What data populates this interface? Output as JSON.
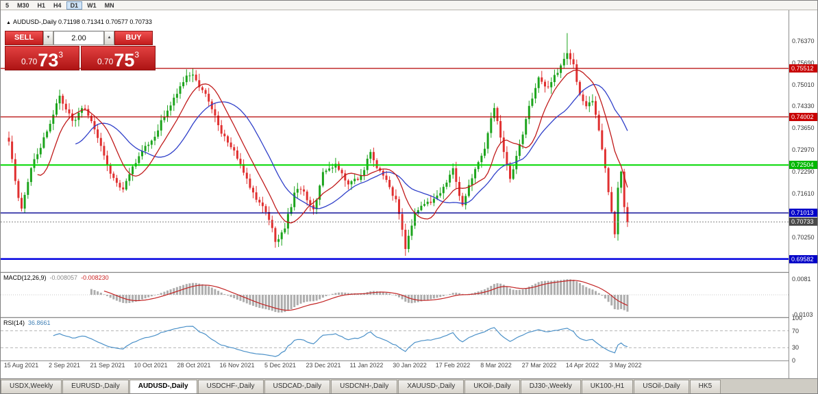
{
  "colors": {
    "bull": "#1ca41c",
    "bear": "#e03030",
    "ma_fast": "#c01a1a",
    "ma_slow": "#2f3fc9",
    "macd_hist": "#adadad",
    "macd_signal": "#c22222",
    "rsi": "#4a90c8"
  },
  "icons": {
    "title_marker": "▲",
    "volume_down": "▼",
    "volume_up": "▲"
  },
  "toolbar": {
    "periods": [
      "5",
      "M30",
      "H1",
      "H4",
      "D1",
      "W1",
      "MN"
    ],
    "active": "D1"
  },
  "chart": {
    "title": "AUDUSD-,Daily 0.71198 0.71341 0.70577 0.70733",
    "range": {
      "top": 0.7732,
      "bottom": 0.6919
    },
    "hlines": [
      {
        "price": 0.75512,
        "color": "#b40000",
        "w": 1.2,
        "dash": ""
      },
      {
        "price": 0.74002,
        "color": "#b40000",
        "w": 1.2,
        "dash": ""
      },
      {
        "price": 0.72504,
        "color": "#00d800",
        "w": 2,
        "dash": ""
      },
      {
        "price": 0.71013,
        "color": "#000090",
        "w": 1.4,
        "dash": ""
      },
      {
        "price": 0.70733,
        "color": "#888888",
        "w": 1,
        "dash": "2,2"
      },
      {
        "price": 0.69582,
        "color": "#0000e0",
        "w": 2.5,
        "dash": ""
      }
    ],
    "price_scale": {
      "ticks": [
        {
          "text": "0.76370",
          "price": 0.7637
        },
        {
          "text": "0.75690",
          "price": 0.7569
        },
        {
          "text": "0.75010",
          "price": 0.7501
        },
        {
          "text": "0.74330",
          "price": 0.7433
        },
        {
          "text": "0.73650",
          "price": 0.7365
        },
        {
          "text": "0.72970",
          "price": 0.7297
        },
        {
          "text": "0.72290",
          "price": 0.7229
        },
        {
          "text": "0.71610",
          "price": 0.7161
        },
        {
          "text": "0.70250",
          "price": 0.7025
        }
      ],
      "badges": [
        {
          "text": "0.75512",
          "price": 0.75512,
          "bg": "#c80000"
        },
        {
          "text": "0.74002",
          "price": 0.74002,
          "bg": "#c80000"
        },
        {
          "text": "0.72504",
          "price": 0.72504,
          "bg": "#00b800"
        },
        {
          "text": "0.71013",
          "price": 0.71013,
          "bg": "#0000c8"
        },
        {
          "text": "0.70733",
          "price": 0.70733,
          "bg": "#4a4a4a"
        },
        {
          "text": "0.69582",
          "price": 0.69582,
          "bg": "#0000c8"
        }
      ]
    },
    "xlabels": [
      "15 Aug 2021",
      "2 Sep 2021",
      "21 Sep 2021",
      "10 Oct 2021",
      "28 Oct 2021",
      "16 Nov 2021",
      "5 Dec 2021",
      "23 Dec 2021",
      "11 Jan 2022",
      "30 Jan 2022",
      "17 Feb 2022",
      "8 Mar 2022",
      "27 Mar 2022",
      "14 Apr 2022",
      "3 May 2022"
    ]
  },
  "trade_panel": {
    "sell_label": "SELL",
    "buy_label": "BUY",
    "volume": "2.00",
    "sell_price": {
      "prefix": "0.70",
      "big": "73",
      "sup": "3"
    },
    "buy_price": {
      "prefix": "0.70",
      "big": "75",
      "sup": "3"
    }
  },
  "macd": {
    "label": "MACD(12,26,9)",
    "value1": "-0.008057",
    "value2": "-0.008230",
    "scale_top": "0.0081",
    "scale_bottom": "-0.0103"
  },
  "rsi": {
    "label": "RSI(14)",
    "value": "36.8661",
    "levels": [
      "100",
      "70",
      "30",
      "0"
    ]
  },
  "tabs": [
    {
      "label": "USDX,Weekly",
      "active": false
    },
    {
      "label": "EURUSD-,Daily",
      "active": false
    },
    {
      "label": "AUDUSD-,Daily",
      "active": true
    },
    {
      "label": "USDCHF-,Daily",
      "active": false
    },
    {
      "label": "USDCAD-,Daily",
      "active": false
    },
    {
      "label": "USDCNH-,Daily",
      "active": false
    },
    {
      "label": "XAUUSD-,Daily",
      "active": false
    },
    {
      "label": "UKOil-,Daily",
      "active": false
    },
    {
      "label": "DJ30-,Weekly",
      "active": false
    },
    {
      "label": "UK100-,H1",
      "active": false
    },
    {
      "label": "USOil-,Daily",
      "active": false
    },
    {
      "label": "HK5",
      "active": false
    }
  ],
  "chart_data": {
    "type": "candlestick",
    "symbol": "AUDUSD-",
    "timeframe": "Daily",
    "ohlc_readout": {
      "open": 0.71198,
      "high": 0.71341,
      "low": 0.70577,
      "close": 0.70733
    },
    "key_levels": [
      0.75512,
      0.74002,
      0.72504,
      0.71013,
      0.70733,
      0.69582
    ],
    "candle_count": 196,
    "waypoints": [
      [
        0,
        0.733
      ],
      [
        2,
        0.72
      ],
      [
        4,
        0.7115
      ],
      [
        7,
        0.725
      ],
      [
        11,
        0.734
      ],
      [
        16,
        0.7462
      ],
      [
        20,
        0.7385
      ],
      [
        24,
        0.743
      ],
      [
        28,
        0.733
      ],
      [
        32,
        0.7235
      ],
      [
        36,
        0.718
      ],
      [
        40,
        0.726
      ],
      [
        44,
        0.731
      ],
      [
        48,
        0.7385
      ],
      [
        52,
        0.747
      ],
      [
        56,
        0.7535
      ],
      [
        59,
        0.7515
      ],
      [
        62,
        0.747
      ],
      [
        66,
        0.737
      ],
      [
        70,
        0.7305
      ],
      [
        74,
        0.723
      ],
      [
        78,
        0.7135
      ],
      [
        81,
        0.7105
      ],
      [
        84,
        0.701
      ],
      [
        87,
        0.706
      ],
      [
        90,
        0.716
      ],
      [
        93,
        0.7175
      ],
      [
        96,
        0.7105
      ],
      [
        99,
        0.7215
      ],
      [
        103,
        0.7255
      ],
      [
        107,
        0.718
      ],
      [
        111,
        0.7215
      ],
      [
        114,
        0.7295
      ],
      [
        118,
        0.7215
      ],
      [
        122,
        0.7135
      ],
      [
        125,
        0.6995
      ],
      [
        128,
        0.709
      ],
      [
        132,
        0.714
      ],
      [
        136,
        0.7155
      ],
      [
        140,
        0.7235
      ],
      [
        143,
        0.7125
      ],
      [
        147,
        0.7235
      ],
      [
        150,
        0.7305
      ],
      [
        153,
        0.743
      ],
      [
        156,
        0.7295
      ],
      [
        158,
        0.721
      ],
      [
        161,
        0.7325
      ],
      [
        164,
        0.7425
      ],
      [
        167,
        0.751
      ],
      [
        170,
        0.749
      ],
      [
        173,
        0.7535
      ],
      [
        176,
        0.76
      ],
      [
        178,
        0.7565
      ],
      [
        180,
        0.747
      ],
      [
        182,
        0.7445
      ],
      [
        184,
        0.746
      ],
      [
        186,
        0.7355
      ],
      [
        188,
        0.724
      ],
      [
        190,
        0.7105
      ],
      [
        191,
        0.7035
      ],
      [
        192,
        0.718
      ],
      [
        193,
        0.723
      ],
      [
        194,
        0.71198
      ],
      [
        195,
        0.70733
      ]
    ],
    "pins": {
      "190": 0.7105,
      "191": 0.7035,
      "192": 0.718,
      "193": 0.723,
      "194": 0.71198,
      "195": 0.70733
    },
    "spikes": [
      {
        "i": 176,
        "h": 0.7661
      },
      {
        "i": 125,
        "l": 0.6968
      },
      {
        "i": 84,
        "l": 0.6993
      },
      {
        "i": 4,
        "l": 0.7106
      }
    ],
    "last_candle": {
      "o": 0.71198,
      "h": 0.71341,
      "l": 0.70577,
      "c": 0.70733
    },
    "ma_fast_period": 10,
    "ma_slow_period": 22,
    "macd_params": [
      12,
      26,
      9
    ],
    "macd_values": [
      -0.008057,
      -0.00823
    ],
    "rsi_period": 14,
    "rsi_value": 36.8661
  }
}
